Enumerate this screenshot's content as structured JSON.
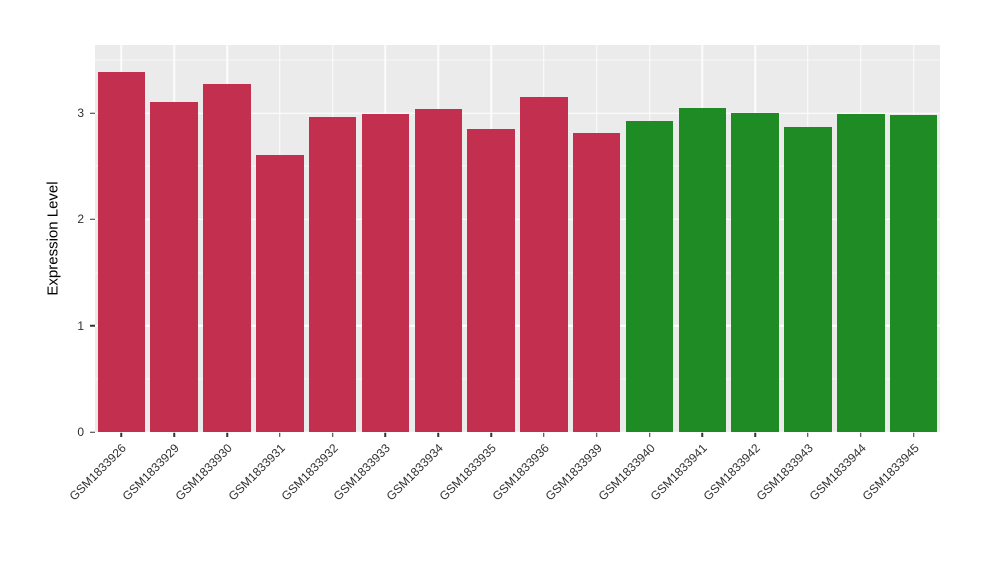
{
  "chart_data": {
    "type": "bar",
    "title": "",
    "xlabel": "",
    "ylabel": "Expression Level",
    "categories": [
      "GSM1833926",
      "GSM1833929",
      "GSM1833930",
      "GSM1833931",
      "GSM1833932",
      "GSM1833933",
      "GSM1833934",
      "GSM1833935",
      "GSM1833936",
      "GSM1833939",
      "GSM1833940",
      "GSM1833941",
      "GSM1833942",
      "GSM1833943",
      "GSM1833944",
      "GSM1833945"
    ],
    "values": [
      3.39,
      3.1,
      3.27,
      2.61,
      2.96,
      2.99,
      3.04,
      2.85,
      3.15,
      2.81,
      2.93,
      3.05,
      3.0,
      2.87,
      2.99,
      2.98
    ],
    "bar_colors": [
      "#C22F4F",
      "#C22F4F",
      "#C22F4F",
      "#C22F4F",
      "#C22F4F",
      "#C22F4F",
      "#C22F4F",
      "#C22F4F",
      "#C22F4F",
      "#C22F4F",
      "#1F8B24",
      "#1F8B24",
      "#1F8B24",
      "#1F8B24",
      "#1F8B24",
      "#1F8B24"
    ],
    "ylim": [
      0,
      3.64
    ],
    "yticks": [
      0,
      1,
      2,
      3
    ],
    "yticks_minor": [
      0.5,
      1.5,
      2.5,
      3.5
    ],
    "panel_bg": "#EBEBEB",
    "grid_color": "#FFFFFF",
    "bar_width_fraction": 0.9,
    "legend": "none",
    "x_label_angle_deg": 45
  }
}
